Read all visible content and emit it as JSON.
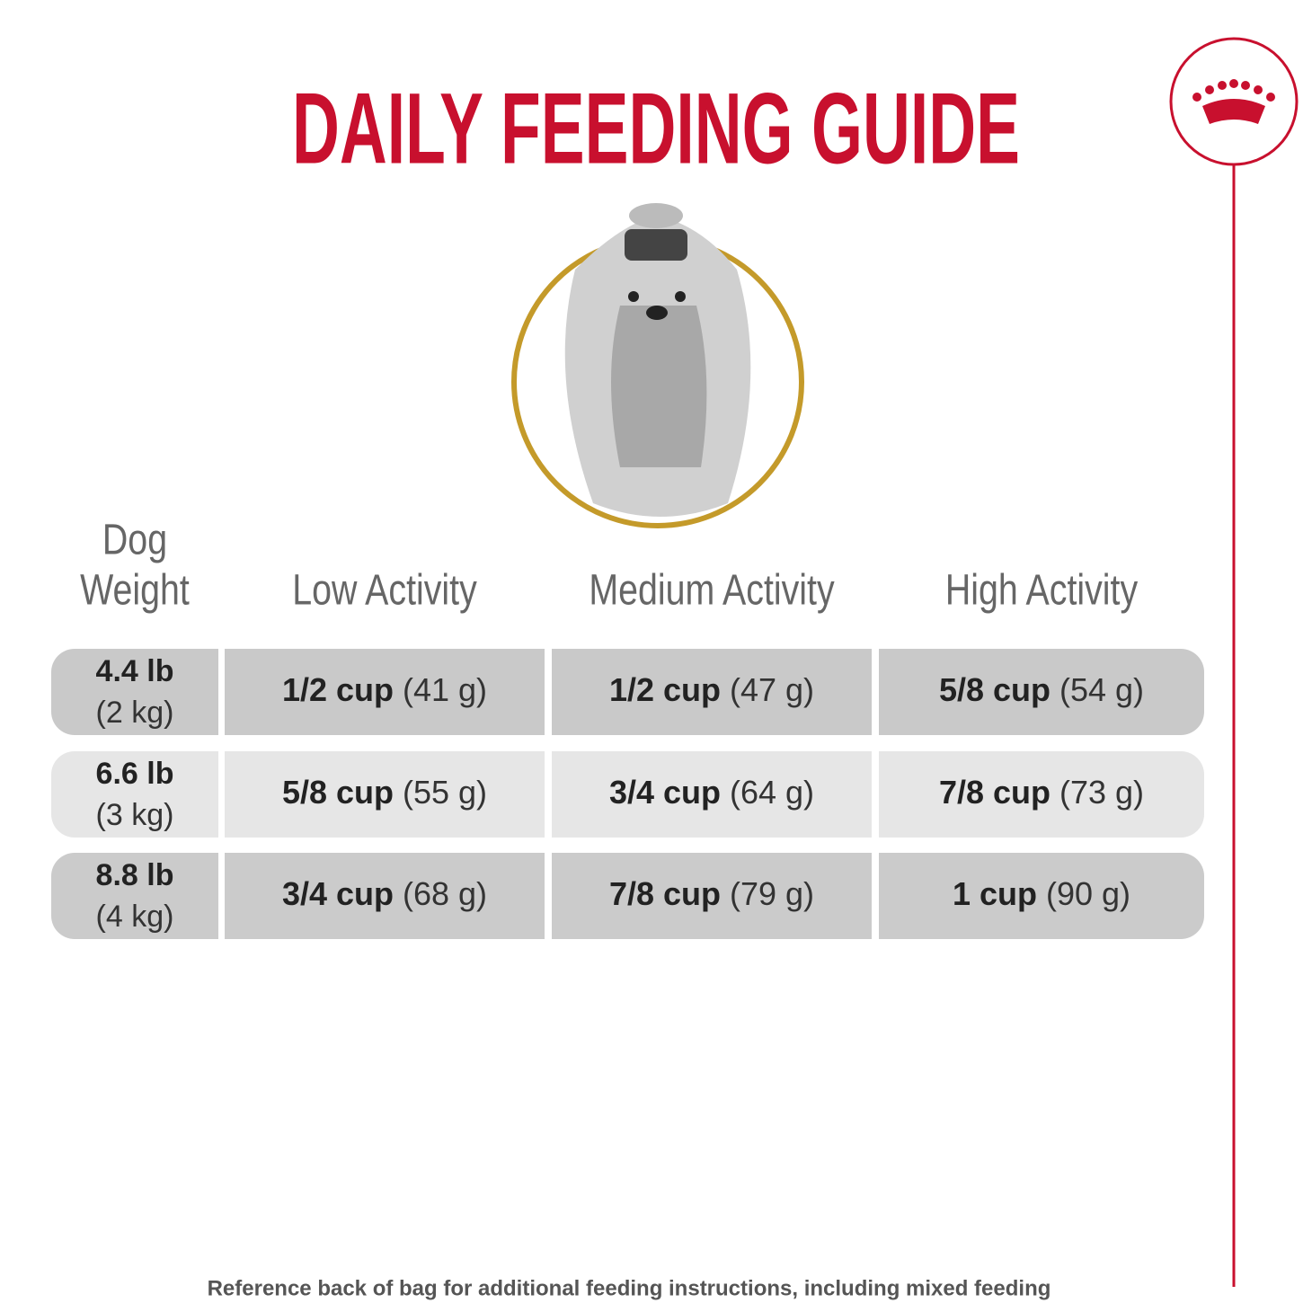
{
  "title": "DAILY FEEDING GUIDE",
  "table": {
    "columns": [
      [
        "Dog",
        "Weight"
      ],
      [
        "Low Activity"
      ],
      [
        "Medium Activity"
      ],
      [
        "High Activity"
      ]
    ],
    "rows": [
      {
        "weight": [
          "4.4 lb",
          "(2 kg)"
        ],
        "cells": [
          [
            "1/2 cup",
            "(41 g)"
          ],
          [
            "1/2 cup",
            "(47 g)"
          ],
          [
            "5/8 cup",
            "(54 g)"
          ]
        ]
      },
      {
        "weight": [
          "6.6 lb",
          "(3 kg)"
        ],
        "cells": [
          [
            "5/8 cup",
            "(55 g)"
          ],
          [
            "3/4 cup",
            "(64 g)"
          ],
          [
            "7/8 cup",
            "(73 g)"
          ]
        ]
      },
      {
        "weight": [
          "8.8 lb",
          "(4 kg)"
        ],
        "cells": [
          [
            "3/4 cup",
            "(68 g)"
          ],
          [
            "7/8 cup",
            "(79 g)"
          ],
          [
            "1 cup",
            "(90 g)"
          ]
        ]
      }
    ]
  },
  "footer": "Reference back of bag for additional feeding instructions, including mixed feeding"
}
